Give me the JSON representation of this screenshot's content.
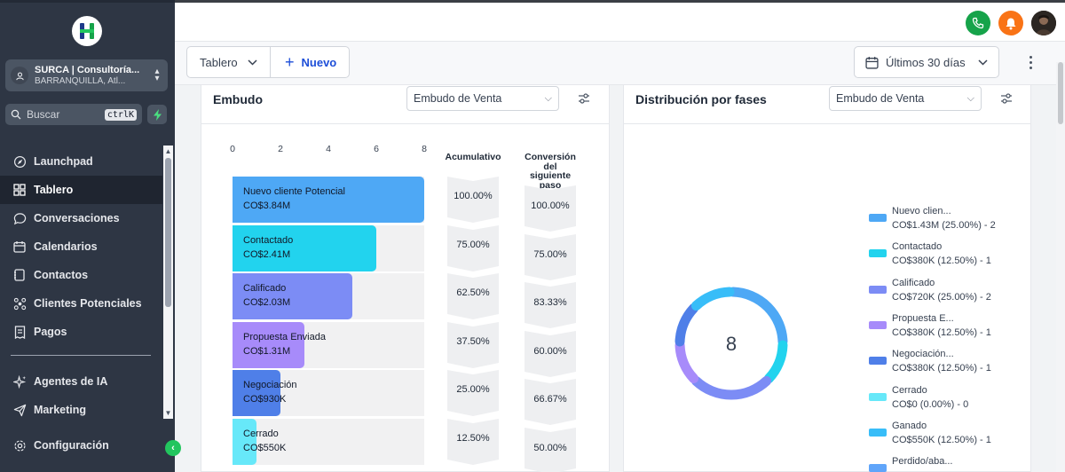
{
  "sidebar": {
    "account": {
      "name": "SURCA | Consultoría...",
      "location": "BARRANQUILLA, Atl..."
    },
    "search": {
      "placeholder": "Buscar",
      "shortcut": "ctrlK"
    },
    "items": [
      {
        "label": "Launchpad",
        "icon": "rocket-icon"
      },
      {
        "label": "Tablero",
        "icon": "dashboard-icon",
        "active": true
      },
      {
        "label": "Conversaciones",
        "icon": "chat-icon"
      },
      {
        "label": "Calendarios",
        "icon": "calendar-icon"
      },
      {
        "label": "Contactos",
        "icon": "contacts-icon"
      },
      {
        "label": "Clientes Potenciales",
        "icon": "leads-icon"
      },
      {
        "label": "Pagos",
        "icon": "payments-icon"
      }
    ],
    "items2": [
      {
        "label": "Agentes de IA",
        "icon": "sparkle-icon"
      },
      {
        "label": "Marketing",
        "icon": "send-icon"
      }
    ],
    "config_label": "Configuración"
  },
  "toolbar": {
    "tablero_label": "Tablero",
    "nuevo_label": "Nuevo",
    "date_label": "Últimos 30 días"
  },
  "funnel_card": {
    "title": "Embudo",
    "select_value": "Embudo de Venta",
    "col_cumulative": "Acumulativo",
    "col_conversion": [
      "Conversión",
      "del",
      "siguiente",
      "paso"
    ]
  },
  "dist_card": {
    "title": "Distribución por fases",
    "select_value": "Embudo de Venta",
    "total": "8"
  },
  "colors": {
    "stage1": "#4ea8f5",
    "stage2": "#22d3ee",
    "stage3": "#7c8cf5",
    "stage4": "#a78bfa",
    "stage5": "#4f7fe8",
    "stage6": "#67e8f9",
    "stage7": "#38bdf8",
    "stage8": "#60a5fa"
  },
  "chart_data": [
    {
      "type": "bar",
      "orientation": "horizontal",
      "categories": [
        "Nuevo cliente Potencial",
        "Contactado",
        "Calificado",
        "Propuesta Enviada",
        "Negociación",
        "Cerrado"
      ],
      "values": [
        8,
        6,
        5,
        3,
        2,
        1
      ],
      "value_labels": [
        "CO$3.84M",
        "CO$2.41M",
        "CO$2.03M",
        "CO$1.31M",
        "CO$930K",
        "CO$550K"
      ],
      "cumulative": [
        "100.00%",
        "75.00%",
        "62.50%",
        "37.50%",
        "25.00%",
        "12.50%"
      ],
      "conversion": [
        "100.00%",
        "75.00%",
        "83.33%",
        "60.00%",
        "66.67%",
        "50.00%"
      ],
      "xticks": [
        "0",
        "2",
        "4",
        "6",
        "8"
      ],
      "xlim": [
        0,
        8
      ]
    },
    {
      "type": "pie",
      "style": "donut",
      "legend_placement": "right",
      "slices": [
        {
          "name": "Nuevo clien...",
          "label": "CO$1.43M (25.00%) - 2",
          "count": 2
        },
        {
          "name": "Contactado",
          "label": "CO$380K (12.50%) - 1",
          "count": 1
        },
        {
          "name": "Calificado",
          "label": "CO$720K (25.00%) - 2",
          "count": 2
        },
        {
          "name": "Propuesta E...",
          "label": "CO$380K (12.50%) - 1",
          "count": 1
        },
        {
          "name": "Negociación...",
          "label": "CO$380K (12.50%) - 1",
          "count": 1
        },
        {
          "name": "Cerrado",
          "label": "CO$0 (0.00%) - 0",
          "count": 0
        },
        {
          "name": "Ganado",
          "label": "CO$550K (12.50%) - 1",
          "count": 1
        },
        {
          "name": "Perdido/aba...",
          "label": "",
          "count": 0
        }
      ]
    }
  ]
}
